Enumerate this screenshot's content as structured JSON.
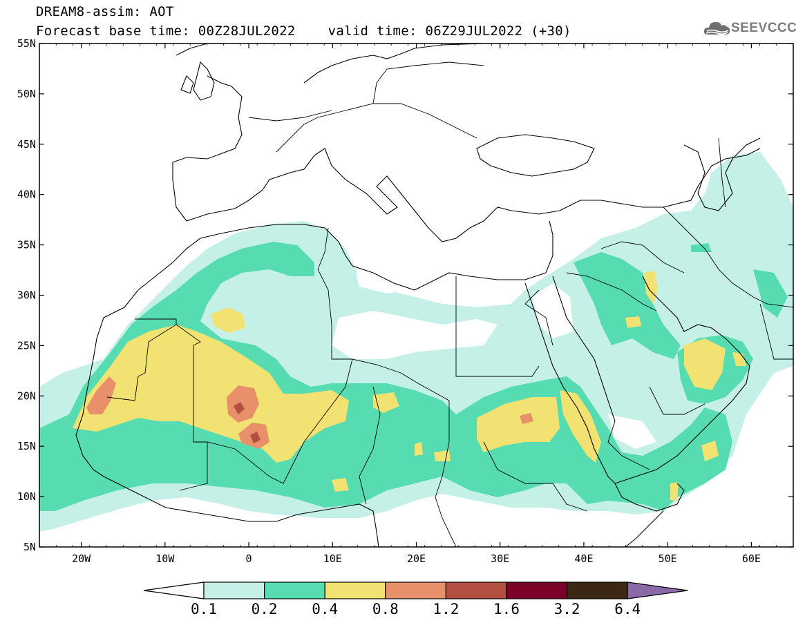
{
  "title": {
    "line1": "DREAM8-assim: AOT",
    "line2": "Forecast base time: 00Z28JUL2022    valid time: 06Z29JUL2022 (+30)"
  },
  "logo": {
    "text": "SEEVCCC",
    "icon": "cloud-icon"
  },
  "map": {
    "lat_labels": [
      "55N",
      "50N",
      "45N",
      "40N",
      "35N",
      "30N",
      "25N",
      "20N",
      "15N",
      "10N",
      "5N"
    ],
    "lon_labels": [
      "20W",
      "10W",
      "0",
      "10E",
      "20E",
      "30E",
      "40E",
      "50E",
      "60E"
    ],
    "lat_range": [
      5,
      55
    ],
    "lon_range": [
      -25,
      65
    ]
  },
  "colorbar": {
    "labels": [
      "0.1",
      "0.2",
      "0.4",
      "0.8",
      "1.2",
      "1.6",
      "3.2",
      "6.4"
    ],
    "colors": [
      "#ffffff",
      "#c4f0e8",
      "#56dcb0",
      "#f2e272",
      "#e8906a",
      "#b24f40",
      "#7a0028",
      "#3c2812",
      "#8a6aa8"
    ]
  },
  "fields": {
    "level_colors": {
      "l1": "#c4f0e8",
      "l2": "#56dcb0",
      "l3": "#f2e272",
      "l4": "#e8906a",
      "l5": "#b24f40"
    }
  }
}
